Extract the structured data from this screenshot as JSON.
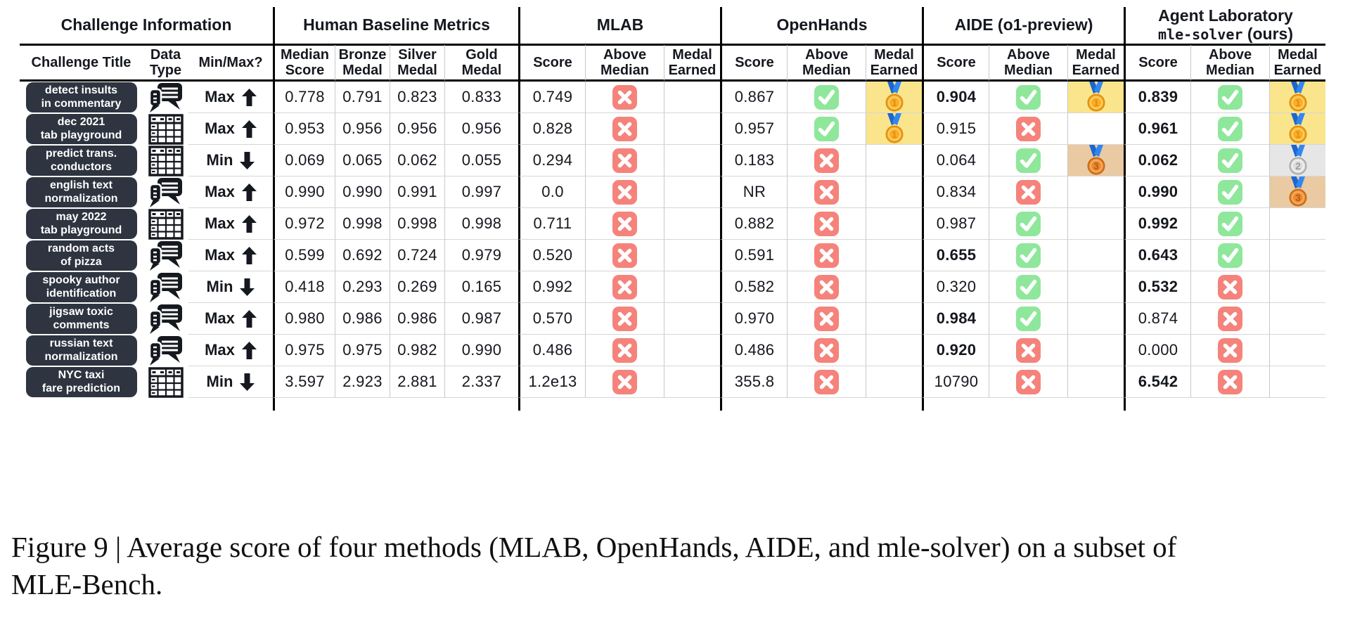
{
  "figure": {
    "caption": {
      "line1": "Figure 9 | Average score of four methods (MLAB, OpenHands, AIDE, and mle-solver) on a subset of",
      "line2": "MLE-Bench."
    }
  },
  "colors": {
    "check_green": "#8FE79B",
    "cross_red": "#F5837B",
    "gold_cell_bg": "#FAE58C",
    "silver_cell_bg": "#E6E6E6",
    "bronze_cell_bg": "#EACAA2",
    "title_pill_bg": "#2E3440",
    "medal_ribbon_blue": "#2B7BE4"
  },
  "table": {
    "groups": [
      {
        "label": "Challenge Information"
      },
      {
        "label": "Human Baseline Metrics"
      },
      {
        "label": "MLAB"
      },
      {
        "label": "OpenHands"
      },
      {
        "label": "AIDE (o1-preview)"
      },
      {
        "line1": "Agent Laboratory",
        "code": "mle-solver",
        "suffix": "(ours)"
      }
    ],
    "subheaders": [
      "Challenge Title",
      "Data Type",
      "Min/Max?",
      "Median Score",
      "Bronze Medal",
      "Silver Medal",
      "Gold Medal",
      "Score",
      "Above Median",
      "Medal Earned",
      "Score",
      "Above Median",
      "Medal Earned",
      "Score",
      "Above Median",
      "Medal Earned",
      "Score",
      "Above Median",
      "Medal Earned"
    ],
    "medal_labels": {
      "gold": "1",
      "silver": "2",
      "bronze": "3"
    },
    "rows": [
      {
        "title": "detect insults\nin commentary",
        "data_type": "text",
        "minmax": "Max",
        "direction": "up",
        "human": {
          "median": "0.778",
          "bronze": "0.791",
          "silver": "0.823",
          "gold": "0.833"
        },
        "methods": [
          {
            "score": "0.749",
            "above": false,
            "medal": null,
            "bold": false
          },
          {
            "score": "0.867",
            "above": true,
            "medal": "gold",
            "bold": false
          },
          {
            "score": "0.904",
            "above": true,
            "medal": "gold",
            "bold": true
          },
          {
            "score": "0.839",
            "above": true,
            "medal": "gold",
            "bold": true
          }
        ]
      },
      {
        "title": "dec 2021\ntab playground",
        "data_type": "tabular",
        "minmax": "Max",
        "direction": "up",
        "human": {
          "median": "0.953",
          "bronze": "0.956",
          "silver": "0.956",
          "gold": "0.956"
        },
        "methods": [
          {
            "score": "0.828",
            "above": false,
            "medal": null,
            "bold": false
          },
          {
            "score": "0.957",
            "above": true,
            "medal": "gold",
            "bold": false
          },
          {
            "score": "0.915",
            "above": false,
            "medal": null,
            "bold": false
          },
          {
            "score": "0.961",
            "above": true,
            "medal": "gold",
            "bold": true
          }
        ]
      },
      {
        "title": "predict trans.\nconductors",
        "data_type": "tabular",
        "minmax": "Min",
        "direction": "down",
        "human": {
          "median": "0.069",
          "bronze": "0.065",
          "silver": "0.062",
          "gold": "0.055"
        },
        "methods": [
          {
            "score": "0.294",
            "above": false,
            "medal": null,
            "bold": false
          },
          {
            "score": "0.183",
            "above": false,
            "medal": null,
            "bold": false
          },
          {
            "score": "0.064",
            "above": true,
            "medal": "bronze",
            "bold": false
          },
          {
            "score": "0.062",
            "above": true,
            "medal": "silver",
            "bold": true
          }
        ]
      },
      {
        "title": "english text\nnormalization",
        "data_type": "text",
        "minmax": "Max",
        "direction": "up",
        "human": {
          "median": "0.990",
          "bronze": "0.990",
          "silver": "0.991",
          "gold": "0.997"
        },
        "methods": [
          {
            "score": "0.0",
            "above": false,
            "medal": null,
            "bold": false
          },
          {
            "score": "NR",
            "above": false,
            "medal": null,
            "bold": false
          },
          {
            "score": "0.834",
            "above": false,
            "medal": null,
            "bold": false
          },
          {
            "score": "0.990",
            "above": true,
            "medal": "bronze",
            "bold": true
          }
        ]
      },
      {
        "title": "may 2022\ntab playground",
        "data_type": "tabular",
        "minmax": "Max",
        "direction": "up",
        "human": {
          "median": "0.972",
          "bronze": "0.998",
          "silver": "0.998",
          "gold": "0.998"
        },
        "methods": [
          {
            "score": "0.711",
            "above": false,
            "medal": null,
            "bold": false
          },
          {
            "score": "0.882",
            "above": false,
            "medal": null,
            "bold": false
          },
          {
            "score": "0.987",
            "above": true,
            "medal": null,
            "bold": false
          },
          {
            "score": "0.992",
            "above": true,
            "medal": null,
            "bold": true
          }
        ]
      },
      {
        "title": "random acts\nof pizza",
        "data_type": "text",
        "minmax": "Max",
        "direction": "up",
        "human": {
          "median": "0.599",
          "bronze": "0.692",
          "silver": "0.724",
          "gold": "0.979"
        },
        "methods": [
          {
            "score": "0.520",
            "above": false,
            "medal": null,
            "bold": false
          },
          {
            "score": "0.591",
            "above": false,
            "medal": null,
            "bold": false
          },
          {
            "score": "0.655",
            "above": true,
            "medal": null,
            "bold": true
          },
          {
            "score": "0.643",
            "above": true,
            "medal": null,
            "bold": true
          }
        ]
      },
      {
        "title": "spooky author\nidentification",
        "data_type": "text",
        "minmax": "Min",
        "direction": "down",
        "human": {
          "median": "0.418",
          "bronze": "0.293",
          "silver": "0.269",
          "gold": "0.165"
        },
        "methods": [
          {
            "score": "0.992",
            "above": false,
            "medal": null,
            "bold": false
          },
          {
            "score": "0.582",
            "above": false,
            "medal": null,
            "bold": false
          },
          {
            "score": "0.320",
            "above": true,
            "medal": null,
            "bold": false
          },
          {
            "score": "0.532",
            "above": false,
            "medal": null,
            "bold": true
          }
        ]
      },
      {
        "title": "jigsaw toxic\ncomments",
        "data_type": "text",
        "minmax": "Max",
        "direction": "up",
        "human": {
          "median": "0.980",
          "bronze": "0.986",
          "silver": "0.986",
          "gold": "0.987"
        },
        "methods": [
          {
            "score": "0.570",
            "above": false,
            "medal": null,
            "bold": false
          },
          {
            "score": "0.970",
            "above": false,
            "medal": null,
            "bold": false
          },
          {
            "score": "0.984",
            "above": true,
            "medal": null,
            "bold": true
          },
          {
            "score": "0.874",
            "above": false,
            "medal": null,
            "bold": false
          }
        ]
      },
      {
        "title": "russian text\nnormalization",
        "data_type": "text",
        "minmax": "Max",
        "direction": "up",
        "human": {
          "median": "0.975",
          "bronze": "0.975",
          "silver": "0.982",
          "gold": "0.990"
        },
        "methods": [
          {
            "score": "0.486",
            "above": false,
            "medal": null,
            "bold": false
          },
          {
            "score": "0.486",
            "above": false,
            "medal": null,
            "bold": false
          },
          {
            "score": "0.920",
            "above": false,
            "medal": null,
            "bold": true
          },
          {
            "score": "0.000",
            "above": false,
            "medal": null,
            "bold": false
          }
        ]
      },
      {
        "title": "NYC taxi\nfare prediction",
        "data_type": "tabular",
        "minmax": "Min",
        "direction": "down",
        "human": {
          "median": "3.597",
          "bronze": "2.923",
          "silver": "2.881",
          "gold": "2.337"
        },
        "methods": [
          {
            "score": "1.2e13",
            "above": false,
            "medal": null,
            "bold": false
          },
          {
            "score": "355.8",
            "above": false,
            "medal": null,
            "bold": false
          },
          {
            "score": "10790",
            "above": false,
            "medal": null,
            "bold": false
          },
          {
            "score": "6.542",
            "above": false,
            "medal": null,
            "bold": true
          }
        ]
      }
    ]
  }
}
